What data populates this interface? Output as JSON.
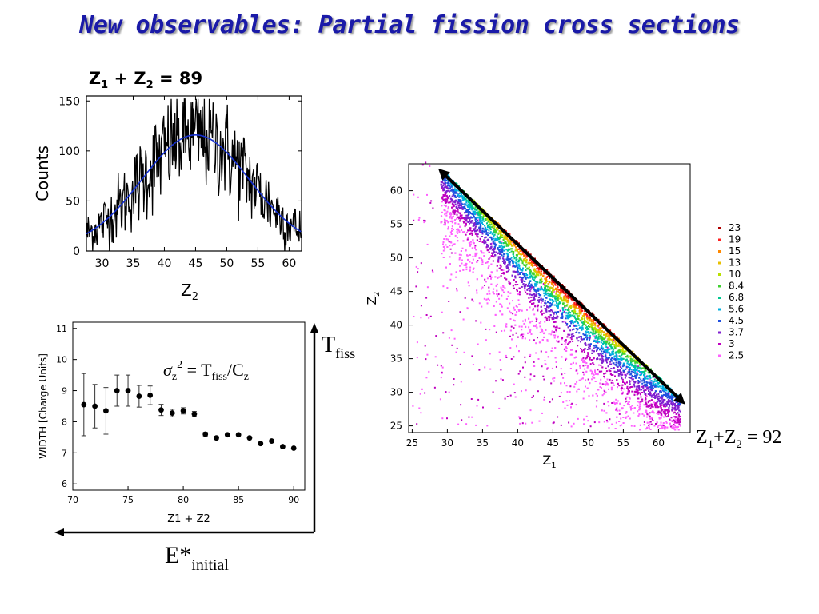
{
  "title": "New observables: Partial fission cross sections",
  "charts": {
    "counts": {
      "heading": {
        "a": "Z",
        "a_sub": "1",
        "plus": " + Z",
        "b_sub": "2",
        "eq": "  = 89"
      },
      "ylabel": "Counts",
      "xlabel": {
        "main": "Z",
        "sub": "2"
      },
      "xticks": [
        30,
        35,
        40,
        45,
        50,
        55,
        60
      ],
      "yticks": [
        0,
        50,
        100,
        150
      ],
      "xlim": [
        27.5,
        62
      ],
      "ylim": [
        0,
        155
      ],
      "gauss": {
        "mu": 45,
        "sigma": 8.6,
        "amp": 113
      }
    },
    "width": {
      "ylabel": "WIDTH [Charge Units]",
      "xlabel": "Z1 + Z2",
      "xticks": [
        70,
        75,
        80,
        85,
        90
      ],
      "yticks": [
        6,
        7,
        8,
        9,
        10,
        11
      ],
      "xlim": [
        70,
        91
      ],
      "ylim": [
        5.8,
        11.2
      ]
    },
    "scatter": {
      "xlabel": {
        "main": "Z",
        "sub": "1"
      },
      "ylabel": {
        "main": "Z",
        "sub": "2"
      },
      "xticks": [
        25,
        30,
        35,
        40,
        45,
        50,
        55,
        60
      ],
      "yticks": [
        25,
        30,
        35,
        40,
        45,
        50,
        55,
        60
      ],
      "xlim": [
        24.5,
        64.5
      ],
      "ylim": [
        24,
        64
      ],
      "legend": [
        {
          "label": "23",
          "color": "#b00000"
        },
        {
          "label": "19",
          "color": "#ff2020"
        },
        {
          "label": "15",
          "color": "#ff8800"
        },
        {
          "label": "13",
          "color": "#e8c000"
        },
        {
          "label": "10",
          "color": "#b8e000"
        },
        {
          "label": "8.4",
          "color": "#40d030"
        },
        {
          "label": "6.8",
          "color": "#00c890"
        },
        {
          "label": "5.6",
          "color": "#00b0e0"
        },
        {
          "label": "4.5",
          "color": "#2050e0"
        },
        {
          "label": "3.7",
          "color": "#8020d0"
        },
        {
          "label": "3",
          "color": "#c000c0"
        },
        {
          "label": "2.5",
          "color": "#ff60ff"
        }
      ]
    }
  },
  "chart_data": [
    {
      "type": "line",
      "title": "Z1 + Z2 = 89",
      "xlabel": "Z2",
      "ylabel": "Counts",
      "xlim": [
        27.5,
        62
      ],
      "ylim": [
        0,
        155
      ],
      "series": [
        {
          "values_fit": "gaussian",
          "mu": 45,
          "sigma": 8.6,
          "amplitude": 113
        }
      ]
    },
    {
      "type": "scatter",
      "xlabel": "Z1 + Z2",
      "ylabel": "WIDTH [Charge Units]",
      "xlim": [
        70,
        91
      ],
      "ylim": [
        5.8,
        11.2
      ],
      "x": [
        71,
        72,
        73,
        74,
        75,
        76,
        77,
        78,
        79,
        80,
        81,
        82,
        83,
        84,
        85,
        86,
        87,
        88,
        89,
        90
      ],
      "y": [
        8.55,
        8.5,
        8.35,
        9.0,
        9.0,
        8.82,
        8.85,
        8.38,
        8.28,
        8.35,
        8.25,
        7.6,
        7.48,
        7.58,
        7.58,
        7.48,
        7.3,
        7.38,
        7.2,
        7.15
      ],
      "error": [
        1.0,
        0.7,
        0.75,
        0.5,
        0.5,
        0.35,
        0.3,
        0.18,
        0.12,
        0.1,
        0.08,
        0.06,
        0.05,
        0,
        0,
        0,
        0,
        0,
        0,
        0
      ]
    },
    {
      "type": "heatmap",
      "xlabel": "Z1",
      "ylabel": "Z2",
      "xlim": [
        24.5,
        64.5
      ],
      "ylim": [
        24,
        64
      ],
      "ridge": "Z1+Z2 = 92",
      "legend": [
        "23",
        "19",
        "15",
        "13",
        "10",
        "8.4",
        "6.8",
        "5.6",
        "4.5",
        "3.7",
        "3",
        "2.5"
      ]
    }
  ],
  "annotations": {
    "sigma": {
      "s": "σ",
      "z": "z",
      "two": "2",
      "eq": " = T",
      "fiss": "fiss",
      "slash": "/C",
      "z2": "z"
    },
    "tfiss": {
      "T": "T",
      "sub": "fiss"
    },
    "estar": {
      "E": "E*",
      "sub": "initial"
    },
    "ridge": {
      "a": "Z",
      "a_sub": "1",
      "plus": "+Z",
      "b_sub": "2",
      "eq": " = 92"
    }
  }
}
